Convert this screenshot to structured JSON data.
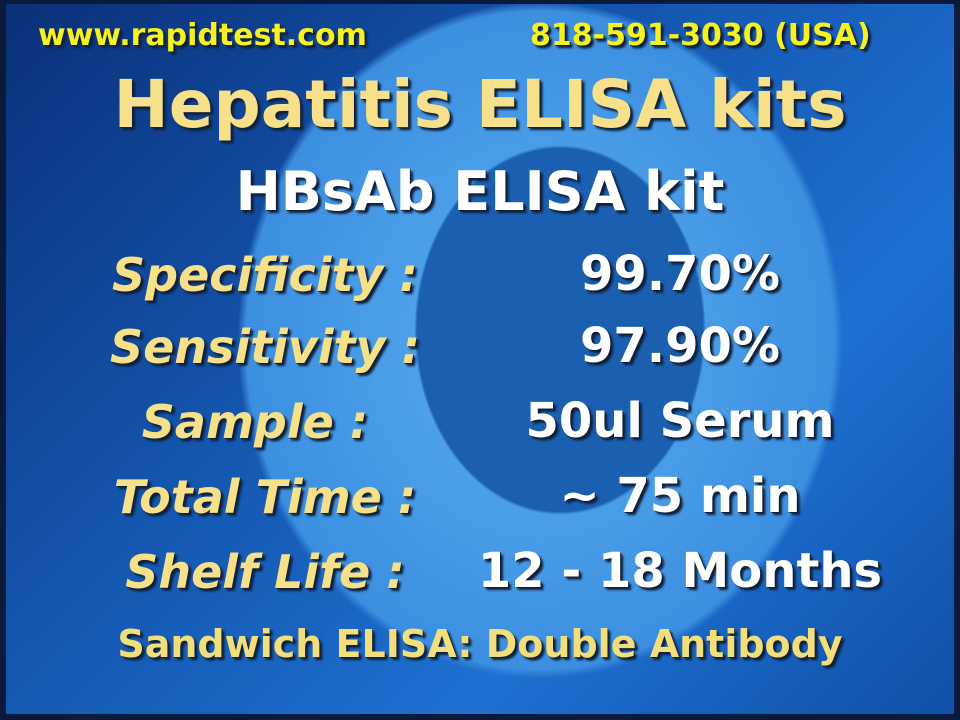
{
  "header": {
    "website": "www.rapidtest.com",
    "phone": "818-591-3030 (USA)"
  },
  "title": "Hepatitis ELISA kits",
  "subtitle": "HBsAb ELISA kit",
  "specs": [
    {
      "label": "Specificity :",
      "value": "99.70%"
    },
    {
      "label": "Sensitivity :",
      "value": "97.90%"
    },
    {
      "label": "Sample :",
      "value": "50ul Serum"
    },
    {
      "label": "Total Time :",
      "value": "~ 75 min"
    },
    {
      "label": "Shelf Life :",
      "value": "12 - 18 Months"
    }
  ],
  "footer": "Sandwich ELISA: Double Antibody",
  "colors": {
    "header": "#f5f21e",
    "title": "#f7e08a",
    "value": "#ffffff",
    "background": "#1457b0"
  }
}
